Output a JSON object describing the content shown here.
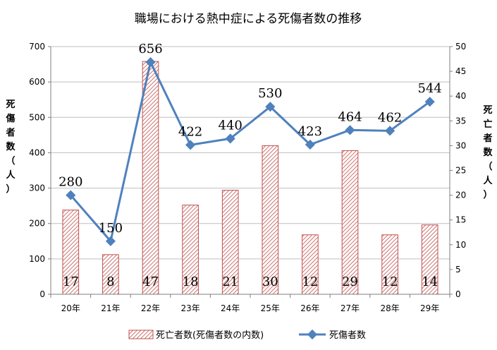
{
  "chart_data": {
    "type": "bar+line",
    "title": "職場における熱中症による死傷者数の推移",
    "categories": [
      "20年",
      "21年",
      "22年",
      "23年",
      "24年",
      "25年",
      "26年",
      "27年",
      "28年",
      "29年"
    ],
    "series": [
      {
        "name": "死亡者数(死傷者数の内数)",
        "type": "bar",
        "axis": "right",
        "values": [
          17,
          8,
          47,
          18,
          21,
          30,
          12,
          29,
          12,
          14
        ],
        "color": "#c0504d"
      },
      {
        "name": "死傷者数",
        "type": "line",
        "axis": "left",
        "values": [
          280,
          150,
          656,
          422,
          440,
          530,
          423,
          464,
          462,
          544
        ],
        "color": "#4f81bd"
      }
    ],
    "left_axis": {
      "label": "死傷者数（人）",
      "ylim": [
        0,
        700
      ],
      "ticks": [
        0,
        100,
        200,
        300,
        400,
        500,
        600,
        700
      ]
    },
    "right_axis": {
      "label": "死亡者数（人）",
      "ylim": [
        0,
        50
      ],
      "ticks": [
        0,
        5,
        10,
        15,
        20,
        25,
        30,
        35,
        40,
        45,
        50
      ]
    },
    "grid": true,
    "legend_position": "bottom"
  }
}
